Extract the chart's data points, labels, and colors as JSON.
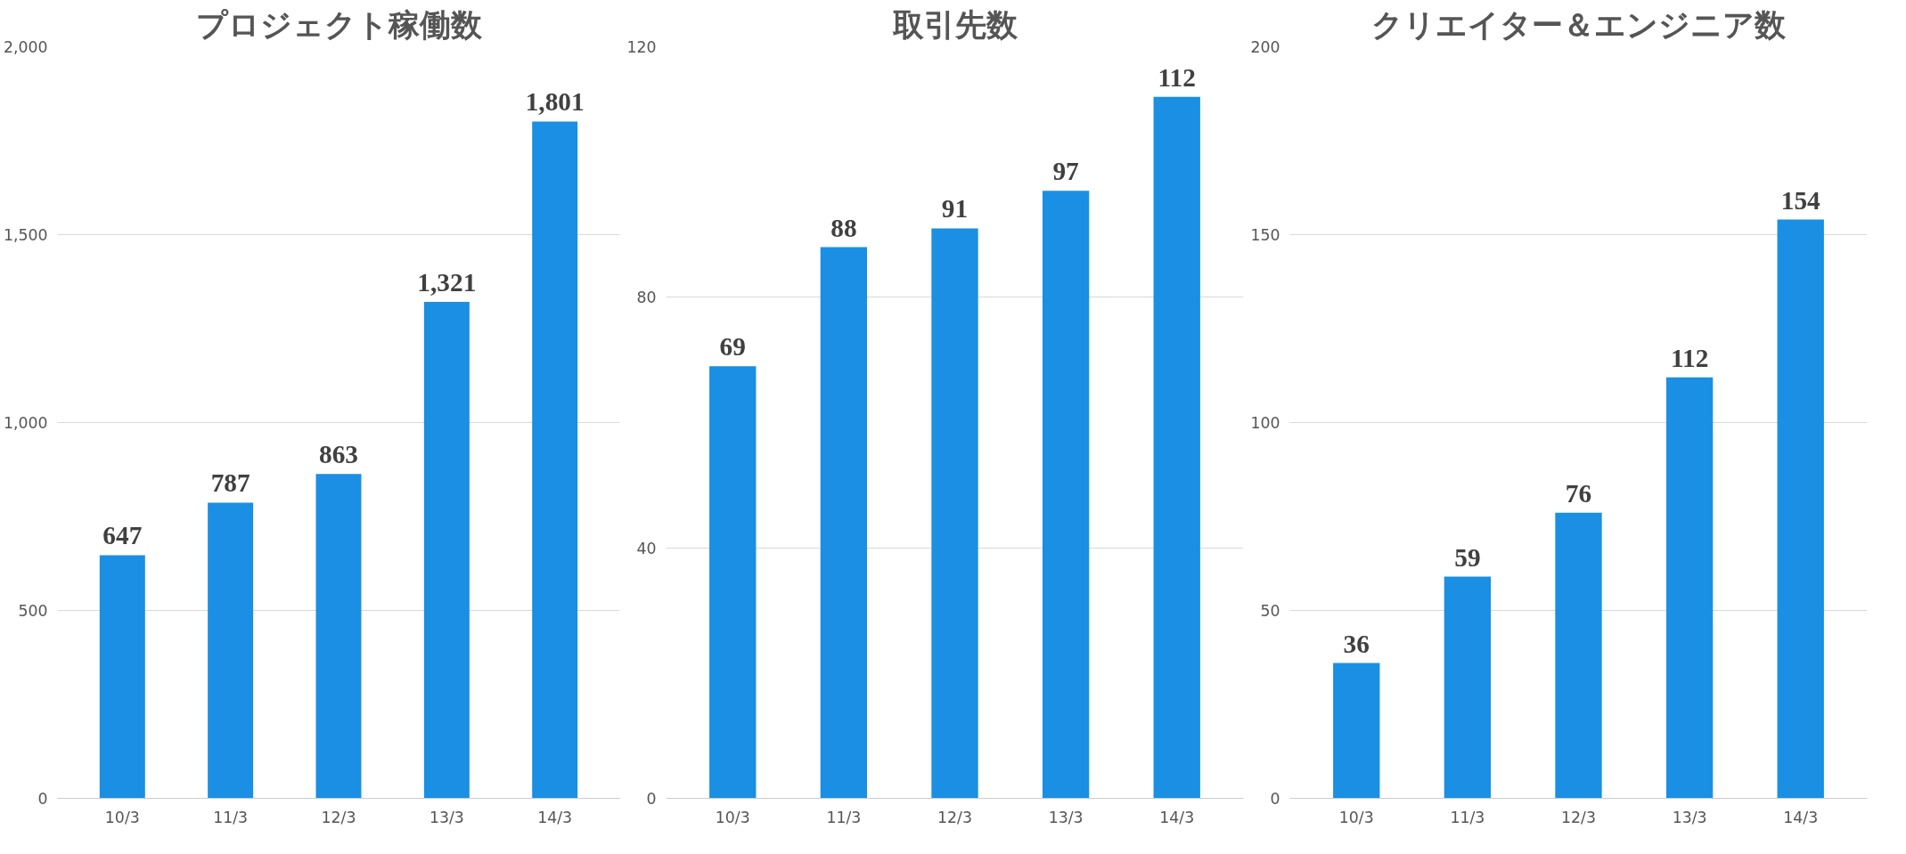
{
  "chart_data": [
    {
      "type": "bar",
      "title": "プロジェクト稼働数",
      "categories": [
        "10/3",
        "11/3",
        "12/3",
        "13/3",
        "14/3"
      ],
      "values": [
        647,
        787,
        863,
        1321,
        1801
      ],
      "value_labels": [
        "647",
        "787",
        "863",
        "1,321",
        "1,801"
      ],
      "color": "#1a8fe3",
      "ylim": [
        0,
        2000
      ],
      "yticks": [
        0,
        500,
        {
          "value": 1000,
          "label": "1,000"
        },
        {
          "value": 1500,
          "label": "1,500"
        },
        {
          "value": 2000,
          "label": "2,000"
        }
      ],
      "grid": "y"
    },
    {
      "type": "bar",
      "title": "取引先数",
      "categories": [
        "10/3",
        "11/3",
        "12/3",
        "13/3",
        "14/3"
      ],
      "values": [
        69,
        88,
        91,
        97,
        112
      ],
      "value_labels": [
        "69",
        "88",
        "91",
        "97",
        "112"
      ],
      "color": "#1a8fe3",
      "ylim": [
        0,
        120
      ],
      "yticks": [
        0,
        40,
        80,
        120
      ],
      "grid": "y"
    },
    {
      "type": "bar",
      "title": "クリエイター＆エンジニア数",
      "categories": [
        "10/3",
        "11/3",
        "12/3",
        "13/3",
        "14/3"
      ],
      "values": [
        36,
        59,
        76,
        112,
        154
      ],
      "value_labels": [
        "36",
        "59",
        "76",
        "112",
        "154"
      ],
      "color": "#1a8fe3",
      "ylim": [
        0,
        200
      ],
      "yticks": [
        0,
        50,
        100,
        150,
        200
      ],
      "grid": "y"
    }
  ]
}
